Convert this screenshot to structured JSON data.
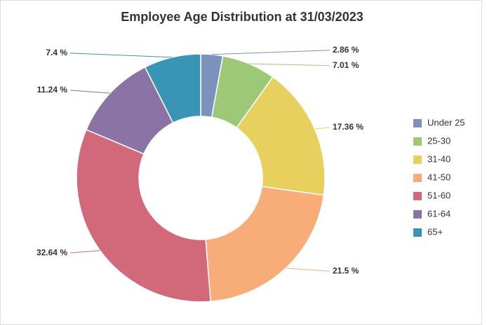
{
  "chart_data": {
    "type": "pie",
    "title": "Employee Age Distribution at 31/03/2023",
    "categories": [
      "Under 25",
      "25-30",
      "31-40",
      "41-50",
      "51-60",
      "61-64",
      "65+"
    ],
    "values": [
      2.86,
      7.01,
      17.36,
      21.5,
      32.64,
      11.24,
      7.4
    ],
    "value_labels": [
      "2.86 %",
      "7.01 %",
      "17.36 %",
      "21.5 %",
      "32.64 %",
      "11.24 %",
      "7.4 %"
    ],
    "colors": [
      "#7b93bb",
      "#9dc878",
      "#e8d05e",
      "#f8ad78",
      "#d2697b",
      "#8c73a5",
      "#3a95b5"
    ],
    "legend": "right"
  }
}
